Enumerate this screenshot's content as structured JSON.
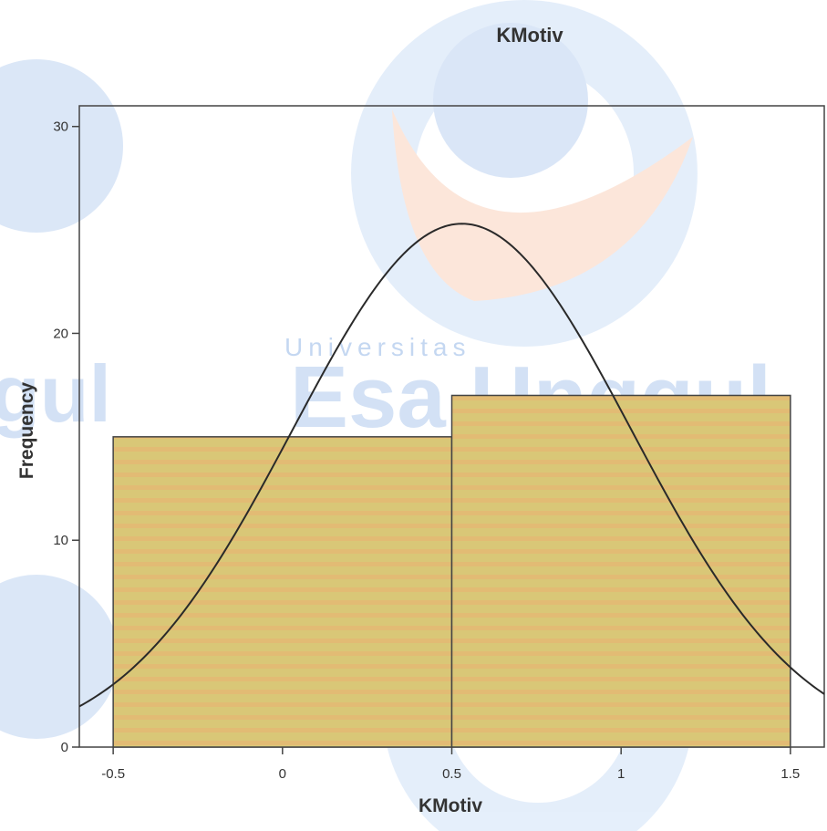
{
  "watermark": {
    "small_text": "Universitas",
    "large_text": "Esa Unggul",
    "left_fragment": "gul"
  },
  "colors": {
    "bar_fill": "#d9c777",
    "bar_stripe": "#e8b070",
    "bar_stroke": "#444444",
    "curve": "#2a2a2a",
    "frame": "#444444",
    "text": "#333333"
  },
  "chart_data": {
    "type": "bar",
    "subtype": "histogram with normal curve",
    "title": "KMotiv",
    "xlabel": "KMotiv",
    "ylabel": "Frequency",
    "xlim": [
      -0.6,
      1.6
    ],
    "ylim": [
      0,
      31
    ],
    "x_ticks": [
      -0.5,
      0,
      0.5,
      1,
      1.5
    ],
    "x_tick_labels": [
      "-0.5",
      "0",
      "0.5",
      "1",
      "1.5"
    ],
    "y_ticks": [
      0,
      10,
      20,
      30
    ],
    "y_tick_labels": [
      "0",
      "10",
      "20",
      "30"
    ],
    "bins": [
      {
        "start": -0.5,
        "end": 0.5,
        "value": 15
      },
      {
        "start": 0.5,
        "end": 1.5,
        "value": 17
      }
    ],
    "normal_curve": {
      "mean": 0.53,
      "sd": 0.5,
      "peak": 25.3
    },
    "grid": false,
    "legend": "none"
  }
}
